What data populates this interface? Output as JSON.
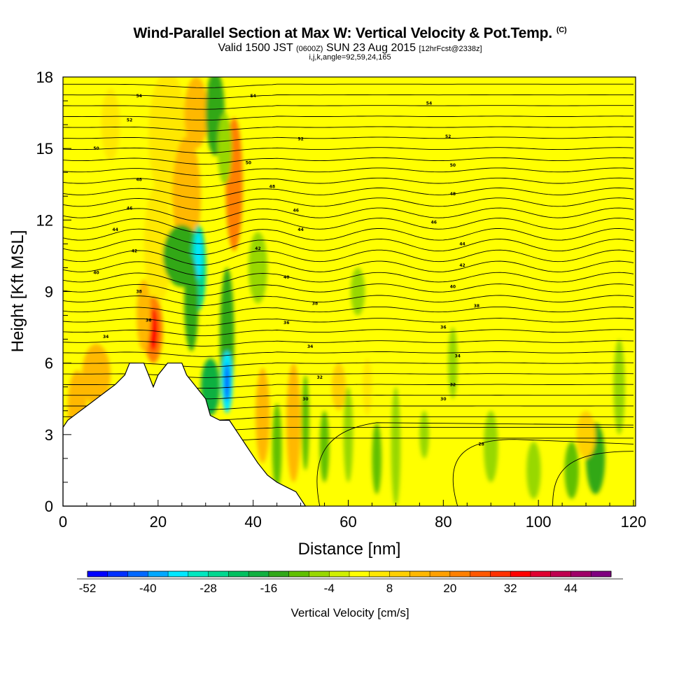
{
  "title": "Wind-Parallel Section at Max W: Vertical Velocity & Pot.Temp.",
  "title_mark": "(C)",
  "subtitle": {
    "valid": "Valid 1500 JST",
    "utc": "(0600Z)",
    "date": "SUN 23 Aug 2015",
    "fcst": "[12hrFcst@2338z]",
    "indices": "i,j,k,angle=92,59,24,165"
  },
  "chart_data": {
    "type": "heatmap",
    "title": "Wind-Parallel Section at Max W: Vertical Velocity & Pot.Temp.",
    "xlabel": "Distance [nm]",
    "ylabel": "Height [Kft MSL]",
    "xlim": [
      0,
      120
    ],
    "ylim": [
      0,
      18
    ],
    "x_ticks": [
      "0",
      "20",
      "40",
      "60",
      "80",
      "100",
      "120"
    ],
    "y_ticks": [
      "0",
      "3",
      "6",
      "9",
      "12",
      "15",
      "18"
    ],
    "colorbar": {
      "label": "Vertical Velocity [cm/s]",
      "tick_labels": [
        "-52",
        "-40",
        "-28",
        "-16",
        "-4",
        "8",
        "20",
        "32",
        "44"
      ],
      "levels": [
        -52,
        -48,
        -44,
        -40,
        -36,
        -32,
        -28,
        -24,
        -20,
        -16,
        -12,
        -8,
        -4,
        0,
        4,
        8,
        12,
        16,
        20,
        24,
        28,
        32,
        36,
        40,
        44,
        48
      ],
      "colors": [
        "#0000ff",
        "#0030ff",
        "#0068ff",
        "#00a8ff",
        "#00e8ff",
        "#00e8c0",
        "#00d890",
        "#00c060",
        "#10b040",
        "#30a818",
        "#60c000",
        "#98d800",
        "#d0f000",
        "#ffff00",
        "#ffe800",
        "#ffd000",
        "#ffb800",
        "#ffa000",
        "#ff8000",
        "#ff5800",
        "#ff3000",
        "#ff0000",
        "#e00030",
        "#c00050",
        "#a00068",
        "#800080"
      ]
    },
    "terrain": [
      [
        0,
        3.3
      ],
      [
        1,
        3.6
      ],
      [
        3,
        3.9
      ],
      [
        5,
        4.2
      ],
      [
        7,
        4.5
      ],
      [
        9,
        4.8
      ],
      [
        11,
        5.1
      ],
      [
        13,
        5.5
      ],
      [
        14,
        6.0
      ],
      [
        17,
        6.0
      ],
      [
        18,
        5.5
      ],
      [
        19,
        5.0
      ],
      [
        20,
        5.5
      ],
      [
        22,
        6.0
      ],
      [
        25,
        6.0
      ],
      [
        26,
        5.5
      ],
      [
        28,
        5.0
      ],
      [
        30,
        4.5
      ],
      [
        31,
        3.8
      ],
      [
        33,
        3.6
      ],
      [
        35,
        3.6
      ],
      [
        37,
        3.0
      ],
      [
        39,
        2.4
      ],
      [
        41,
        1.8
      ],
      [
        43,
        1.3
      ],
      [
        45,
        1.0
      ],
      [
        47,
        0.8
      ],
      [
        49,
        0.6
      ],
      [
        50,
        0.3
      ],
      [
        51,
        0.0
      ]
    ],
    "w_features": [
      {
        "x": 36,
        "y": 12.8,
        "w": 34,
        "desc": "updraft"
      },
      {
        "x": 19,
        "y": 7.4,
        "w": 32,
        "desc": "updraft"
      },
      {
        "x": 34.5,
        "y": 5.2,
        "w": -44,
        "desc": "downdraft"
      },
      {
        "x": 28.5,
        "y": 10.0,
        "w": -36,
        "desc": "downdraft"
      },
      {
        "x": 42,
        "y": 3.3,
        "w": 24,
        "desc": "updraft"
      },
      {
        "x": 48.5,
        "y": 3.1,
        "w": 22,
        "desc": "updraft"
      }
    ],
    "theta_contour_labels": [
      {
        "x": 16,
        "y": 17.2,
        "text": "54"
      },
      {
        "x": 14,
        "y": 16.2,
        "text": "52"
      },
      {
        "x": 7,
        "y": 15.0,
        "text": "50"
      },
      {
        "x": 16,
        "y": 13.7,
        "text": "48"
      },
      {
        "x": 14,
        "y": 12.5,
        "text": "46"
      },
      {
        "x": 11,
        "y": 11.6,
        "text": "44"
      },
      {
        "x": 15,
        "y": 10.7,
        "text": "42"
      },
      {
        "x": 7,
        "y": 9.8,
        "text": "40"
      },
      {
        "x": 16,
        "y": 9.0,
        "text": "38"
      },
      {
        "x": 18,
        "y": 7.8,
        "text": "36"
      },
      {
        "x": 9,
        "y": 7.1,
        "text": "34"
      },
      {
        "x": 40,
        "y": 17.2,
        "text": "54"
      },
      {
        "x": 50,
        "y": 15.4,
        "text": "52"
      },
      {
        "x": 39,
        "y": 14.4,
        "text": "50"
      },
      {
        "x": 44,
        "y": 13.4,
        "text": "48"
      },
      {
        "x": 49,
        "y": 12.4,
        "text": "46"
      },
      {
        "x": 50,
        "y": 11.6,
        "text": "44"
      },
      {
        "x": 41,
        "y": 10.8,
        "text": "42"
      },
      {
        "x": 47,
        "y": 9.6,
        "text": "40"
      },
      {
        "x": 53,
        "y": 8.5,
        "text": "38"
      },
      {
        "x": 47,
        "y": 7.7,
        "text": "36"
      },
      {
        "x": 52,
        "y": 6.7,
        "text": "34"
      },
      {
        "x": 54,
        "y": 5.4,
        "text": "32"
      },
      {
        "x": 51,
        "y": 4.5,
        "text": "30"
      },
      {
        "x": 77,
        "y": 16.9,
        "text": "54"
      },
      {
        "x": 81,
        "y": 15.5,
        "text": "52"
      },
      {
        "x": 82,
        "y": 14.3,
        "text": "50"
      },
      {
        "x": 82,
        "y": 13.1,
        "text": "48"
      },
      {
        "x": 78,
        "y": 11.9,
        "text": "46"
      },
      {
        "x": 84,
        "y": 11.0,
        "text": "44"
      },
      {
        "x": 84,
        "y": 10.1,
        "text": "42"
      },
      {
        "x": 82,
        "y": 9.2,
        "text": "40"
      },
      {
        "x": 87,
        "y": 8.4,
        "text": "38"
      },
      {
        "x": 80,
        "y": 7.5,
        "text": "36"
      },
      {
        "x": 83,
        "y": 6.3,
        "text": "34"
      },
      {
        "x": 82,
        "y": 5.1,
        "text": "32"
      },
      {
        "x": 80,
        "y": 4.5,
        "text": "30"
      },
      {
        "x": 88,
        "y": 2.6,
        "text": "28"
      }
    ]
  }
}
